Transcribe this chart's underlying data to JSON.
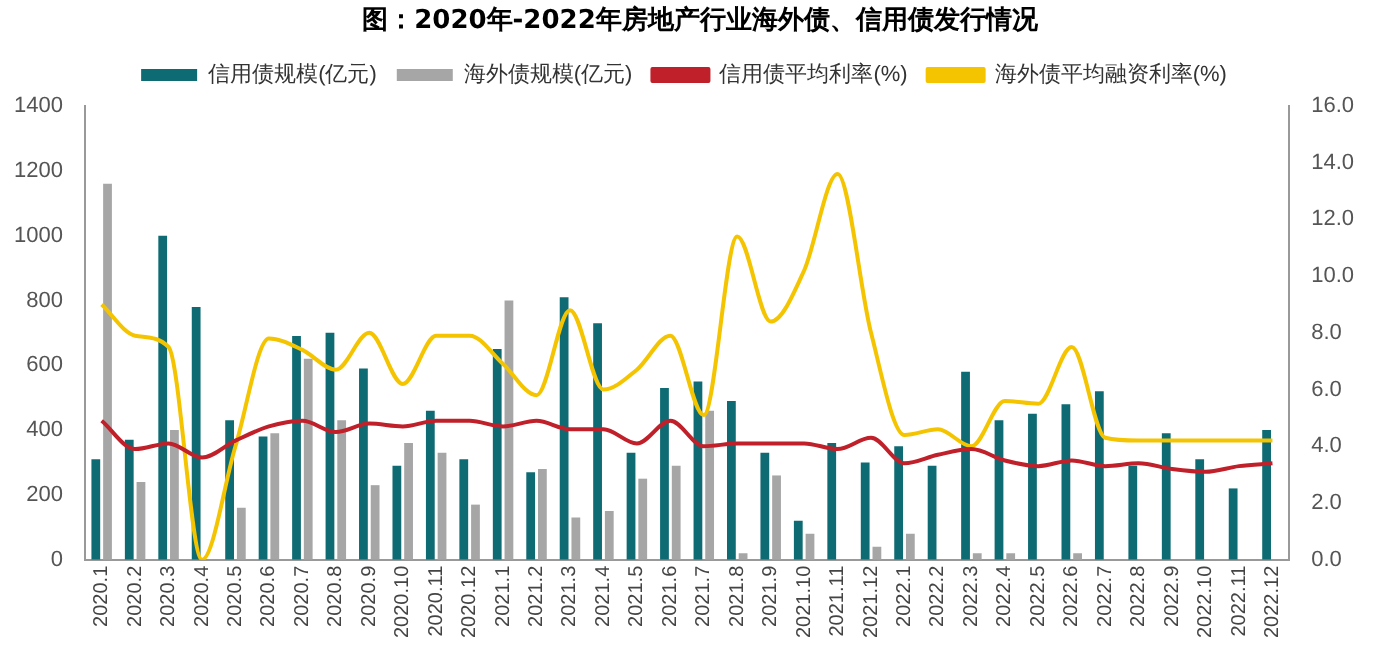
{
  "chart_data": {
    "type": "bar",
    "title": "图：2020年-2022年房地产行业海外债、信用债发行情况",
    "categories": [
      "2020.1",
      "2020.2",
      "2020.3",
      "2020.4",
      "2020.5",
      "2020.6",
      "2020.7",
      "2020.8",
      "2020.9",
      "2020.10",
      "2020.11",
      "2020.12",
      "2021.1",
      "2021.2",
      "2021.3",
      "2021.4",
      "2021.5",
      "2021.6",
      "2021.7",
      "2021.8",
      "2021.9",
      "2021.10",
      "2021.11",
      "2021.12",
      "2022.1",
      "2022.2",
      "2022.3",
      "2022.4",
      "2022.5",
      "2022.6",
      "2022.7",
      "2022.8",
      "2022.9",
      "2022.10",
      "2022.11",
      "2022.12"
    ],
    "series": [
      {
        "name": "信用债规模(亿元)",
        "color": "#0e6b73",
        "values": [
          310,
          370,
          1000,
          780,
          430,
          380,
          690,
          700,
          590,
          290,
          460,
          310,
          650,
          270,
          810,
          730,
          330,
          530,
          550,
          490,
          330,
          120,
          360,
          300,
          350,
          290,
          580,
          430,
          450,
          480,
          520,
          290,
          390,
          310,
          220,
          400
        ]
      },
      {
        "name": "海外债规模(亿元)",
        "color": "#a6a6a6",
        "values": [
          1160,
          240,
          400,
          0,
          160,
          390,
          620,
          430,
          230,
          360,
          330,
          170,
          800,
          280,
          130,
          150,
          250,
          290,
          460,
          20,
          260,
          80,
          0,
          40,
          80,
          0,
          20,
          20,
          0,
          20,
          0,
          0,
          0,
          0,
          0,
          0
        ]
      },
      {
        "name": "信用债平均利率(%)",
        "type": "line",
        "axis": "y2",
        "color": "#c0202a",
        "values": [
          4.9,
          3.9,
          4.1,
          3.6,
          4.2,
          4.7,
          4.9,
          4.5,
          4.8,
          4.7,
          4.9,
          4.9,
          4.7,
          4.9,
          4.6,
          4.6,
          4.1,
          4.9,
          4.0,
          4.1,
          4.1,
          4.1,
          3.9,
          4.3,
          3.4,
          3.7,
          3.9,
          3.5,
          3.3,
          3.5,
          3.3,
          3.4,
          3.2,
          3.1,
          3.3,
          3.4
        ]
      },
      {
        "name": "海外债平均融资利率(%)",
        "type": "line",
        "axis": "y2",
        "color": "#f5c400",
        "values": [
          9.0,
          7.9,
          7.5,
          0,
          4.0,
          7.8,
          7.4,
          6.7,
          8.0,
          6.2,
          7.9,
          7.9,
          6.9,
          5.8,
          8.8,
          6.0,
          6.7,
          7.9,
          5.1,
          11.4,
          8.4,
          10.2,
          13.6,
          8.0,
          4.4,
          4.6,
          4.0,
          5.6,
          5.5,
          7.5,
          4.3,
          4.2,
          4.2,
          4.2,
          4.2,
          4.2
        ]
      }
    ],
    "ylim": [
      0,
      1400
    ],
    "yticks": [
      0,
      200,
      400,
      600,
      800,
      1000,
      1200,
      1400
    ],
    "y2lim": [
      0,
      16
    ],
    "y2ticks": [
      {
        "value": 0,
        "label": "0.0"
      },
      {
        "value": 2,
        "label": "2.0"
      },
      {
        "value": 4,
        "label": "4.0"
      },
      {
        "value": 6,
        "label": "6.0"
      },
      {
        "value": 8,
        "label": "8.0"
      },
      {
        "value": 10,
        "label": "10.0"
      },
      {
        "value": 12,
        "label": "12.0"
      },
      {
        "value": 14,
        "label": "14.0"
      },
      {
        "value": 16,
        "label": "16.0"
      }
    ],
    "legend": "top",
    "grid": false
  }
}
